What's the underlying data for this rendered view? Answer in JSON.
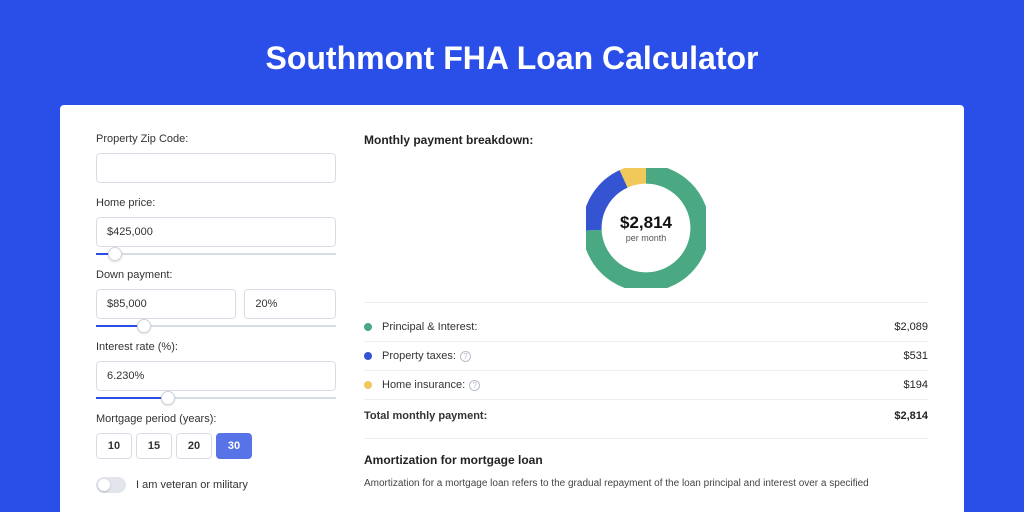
{
  "page": {
    "title": "Southmont FHA Loan Calculator",
    "background_color": "#2a4ee8",
    "panel_bg": "#ffffff"
  },
  "form": {
    "zip": {
      "label": "Property Zip Code:",
      "value": ""
    },
    "home_price": {
      "label": "Home price:",
      "value": "$425,000",
      "slider_pct": 8
    },
    "down_payment": {
      "label": "Down payment:",
      "amount": "$85,000",
      "percent": "20%",
      "slider_pct": 20
    },
    "interest_rate": {
      "label": "Interest rate (%):",
      "value": "6.230%",
      "slider_pct": 30
    },
    "mortgage_period": {
      "label": "Mortgage period (years):",
      "options": [
        "10",
        "15",
        "20",
        "30"
      ],
      "selected": "30"
    },
    "veteran": {
      "label": "I am veteran or military",
      "checked": false
    }
  },
  "breakdown": {
    "title": "Monthly payment breakdown:",
    "center_amount": "$2,814",
    "center_sub": "per month",
    "donut": {
      "stroke_width": 16,
      "radius": 45,
      "segments": [
        {
          "key": "principal_interest",
          "color": "#4aa882",
          "value": 2089
        },
        {
          "key": "property_taxes",
          "color": "#3554d1",
          "value": 531
        },
        {
          "key": "home_insurance",
          "color": "#f0c95a",
          "value": 194
        }
      ],
      "gap_deg": 1
    },
    "items": [
      {
        "dot_color": "#4aa882",
        "label": "Principal & Interest:",
        "info": false,
        "value": "$2,089"
      },
      {
        "dot_color": "#3554d1",
        "label": "Property taxes:",
        "info": true,
        "value": "$531"
      },
      {
        "dot_color": "#f0c95a",
        "label": "Home insurance:",
        "info": true,
        "value": "$194"
      }
    ],
    "total": {
      "label": "Total monthly payment:",
      "value": "$2,814"
    }
  },
  "amortization": {
    "title": "Amortization for mortgage loan",
    "text": "Amortization for a mortgage loan refers to the gradual repayment of the loan principal and interest over a specified"
  }
}
